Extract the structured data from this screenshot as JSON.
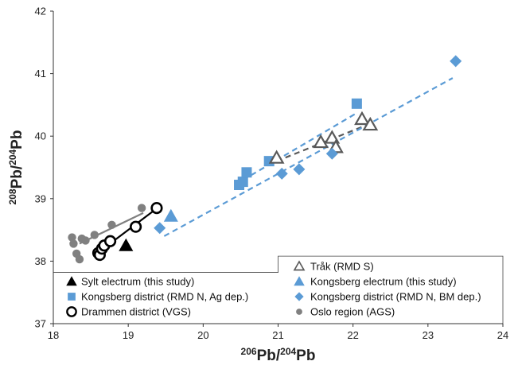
{
  "chart_data": {
    "type": "scatter",
    "xlabel": {
      "sup": "206",
      "main": "Pb/",
      "sup2": "204",
      "end": "Pb"
    },
    "ylabel": {
      "sup": "208",
      "main": "Pb/",
      "sup2": "204",
      "end": "Pb"
    },
    "xlim": [
      18,
      24
    ],
    "ylim": [
      37,
      42
    ],
    "xticks": [
      "18",
      "19",
      "20",
      "21",
      "22",
      "23",
      "24"
    ],
    "yticks": [
      "37",
      "38",
      "39",
      "40",
      "41",
      "42"
    ],
    "grid": false,
    "legend_position": "bottom-left",
    "series": [
      {
        "name": "Sylt electrum (this study)",
        "marker": "triangle-filled",
        "color": "#000000",
        "points": [
          [
            18.97,
            38.25
          ]
        ]
      },
      {
        "name": "Kongsberg district (RMD N, Ag dep.)",
        "marker": "square",
        "color": "#5B9BD5",
        "points": [
          [
            20.48,
            39.22
          ],
          [
            20.53,
            39.27
          ],
          [
            20.58,
            39.42
          ],
          [
            20.88,
            39.6
          ],
          [
            22.05,
            40.52
          ]
        ]
      },
      {
        "name": "Drammen district (VGS)",
        "marker": "circle-open",
        "color": "#000000",
        "points": [
          [
            18.6,
            38.13
          ],
          [
            18.62,
            38.1
          ],
          [
            18.65,
            38.2
          ],
          [
            18.68,
            38.25
          ],
          [
            18.76,
            38.32
          ],
          [
            19.1,
            38.55
          ],
          [
            19.38,
            38.85
          ]
        ]
      },
      {
        "name": "Tråk (RMD S)",
        "marker": "triangle-open",
        "color": "#595959",
        "points": [
          [
            20.98,
            39.65
          ],
          [
            21.57,
            39.9
          ],
          [
            21.72,
            39.97
          ],
          [
            21.77,
            39.82
          ],
          [
            22.12,
            40.27
          ],
          [
            22.23,
            40.18
          ]
        ]
      },
      {
        "name": "Kongsberg electrum (this study)",
        "marker": "triangle-filled",
        "color": "#5B9BD5",
        "points": [
          [
            19.57,
            38.72
          ]
        ]
      },
      {
        "name": "Kongsberg district (RMD N, BM dep.)",
        "marker": "diamond",
        "color": "#5B9BD5",
        "points": [
          [
            19.42,
            38.53
          ],
          [
            21.05,
            39.4
          ],
          [
            21.28,
            39.47
          ],
          [
            21.72,
            39.72
          ],
          [
            23.37,
            41.2
          ]
        ]
      },
      {
        "name": "Oslo region (AGS)",
        "marker": "circle",
        "color": "#808080",
        "points": [
          [
            18.25,
            38.38
          ],
          [
            18.27,
            38.28
          ],
          [
            18.31,
            38.12
          ],
          [
            18.35,
            38.03
          ],
          [
            18.38,
            38.36
          ],
          [
            18.43,
            38.33
          ],
          [
            18.55,
            38.42
          ],
          [
            18.78,
            38.58
          ],
          [
            19.18,
            38.85
          ]
        ]
      }
    ],
    "trendlines": [
      {
        "series": "Oslo region (AGS)",
        "style": "solid",
        "color": "#808080",
        "from": [
          18.35,
          38.28
        ],
        "to": [
          19.2,
          38.77
        ]
      },
      {
        "series": "Drammen district (VGS)",
        "style": "solid",
        "color": "#000000",
        "from": [
          18.58,
          38.12
        ],
        "to": [
          19.4,
          38.86
        ]
      },
      {
        "series": "Tråk (RMD S)",
        "style": "dashed",
        "color": "#595959",
        "from": [
          20.98,
          39.6
        ],
        "to": [
          22.25,
          40.21
        ]
      },
      {
        "series": "Kongsberg district",
        "style": "dashed",
        "color": "#5B9BD5",
        "from": [
          19.48,
          38.4
        ],
        "to": [
          23.33,
          40.93
        ]
      },
      {
        "series": "Kongsberg district",
        "style": "dashed",
        "color": "#5B9BD5",
        "from": [
          20.42,
          39.22
        ],
        "to": [
          22.05,
          40.37
        ]
      }
    ]
  }
}
